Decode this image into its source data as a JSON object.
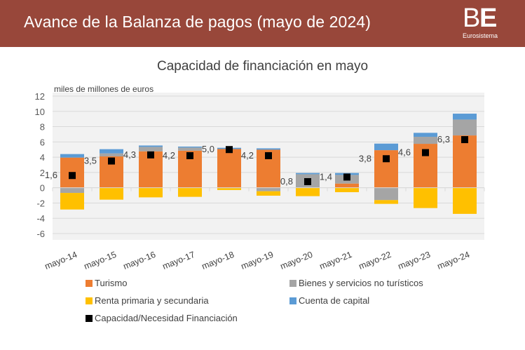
{
  "header": {
    "title": "Avance de la Balanza de pagos (mayo de 2024)",
    "logo": {
      "mark_b": "B",
      "mark_e": "E",
      "subtitle": "Eurosistema"
    },
    "background_color": "#98473A"
  },
  "chart_data": {
    "type": "bar",
    "stacked": true,
    "title": "Capacidad  de financiación en mayo",
    "ylabel": "miles de millones de euros",
    "xlabel": "",
    "ylim": [
      -6,
      12
    ],
    "yticks": [
      -6,
      -4,
      -2,
      0,
      2,
      4,
      6,
      8,
      10,
      12
    ],
    "grid": true,
    "legend_position": "bottom",
    "categories": [
      "mayo-14",
      "mayo-15",
      "mayo-16",
      "mayo-17",
      "mayo-18",
      "mayo-19",
      "mayo-20",
      "mayo-21",
      "mayo-22",
      "mayo-23",
      "mayo-24"
    ],
    "series": [
      {
        "name": "Turismo",
        "color": "#ED7D31",
        "values": [
          3.95,
          4.1,
          4.77,
          4.86,
          5.07,
          4.98,
          0.0,
          0.55,
          4.92,
          5.75,
          6.85
        ]
      },
      {
        "name": "Bienes y servicios no turísticos",
        "color": "#A5A5A5",
        "values": [
          -0.68,
          0.4,
          0.58,
          0.4,
          -0.05,
          -0.46,
          1.77,
          1.13,
          -1.62,
          0.92,
          2.08
        ]
      },
      {
        "name": "Renta primaria y secundaria",
        "color": "#FFC000",
        "values": [
          -2.17,
          -1.56,
          -1.26,
          -1.19,
          -0.25,
          -0.58,
          -1.1,
          -0.58,
          -0.49,
          -2.66,
          -3.42
        ]
      },
      {
        "name": "Cuenta de capital",
        "color": "#5B9BD5",
        "values": [
          0.46,
          0.55,
          0.18,
          0.13,
          0.16,
          0.18,
          0.16,
          0.25,
          0.86,
          0.52,
          0.77
        ]
      }
    ],
    "marker_series": {
      "name": "Capacidad/Necesidad Financiación",
      "color": "#000000",
      "values": [
        1.6,
        3.5,
        4.3,
        4.2,
        5.0,
        4.2,
        0.8,
        1.4,
        3.8,
        4.6,
        6.3
      ],
      "labels": [
        "1,6",
        "3,5",
        "4,3",
        "4,2",
        "5,0",
        "4,2",
        "0,8",
        "1,4",
        "3,8",
        "4,6",
        "6,3"
      ]
    },
    "legend": [
      {
        "label": "Turismo",
        "color": "#ED7D31"
      },
      {
        "label": "Bienes y servicios no turísticos",
        "color": "#A5A5A5"
      },
      {
        "label": "Renta primaria y secundaria",
        "color": "#FFC000"
      },
      {
        "label": "Cuenta de capital",
        "color": "#5B9BD5"
      },
      {
        "label": "Capacidad/Necesidad Financiación",
        "color": "#000000"
      }
    ]
  }
}
